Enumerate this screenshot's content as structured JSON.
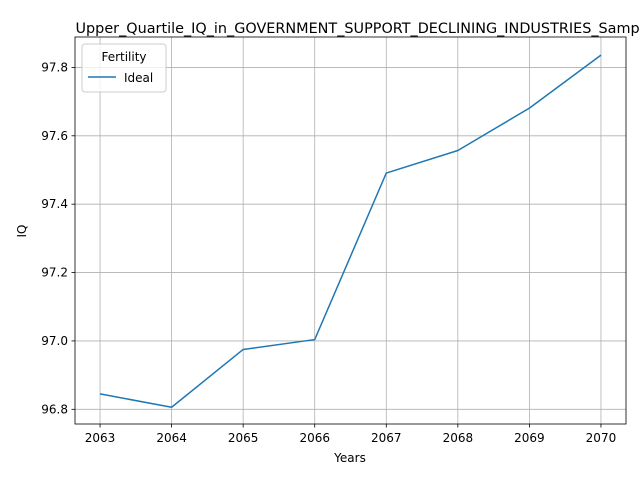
{
  "chart_data": {
    "type": "line",
    "title": "Upper_Quartile_IQ_in_GOVERNMENT_SUPPORT_DECLINING_INDUSTRIES_Sample",
    "xlabel": "Years",
    "ylabel": "IQ",
    "x": [
      2063,
      2064,
      2065,
      2066,
      2067,
      2068,
      2069,
      2070
    ],
    "xlim": [
      2062.65,
      2070.35
    ],
    "ylim": [
      96.757,
      97.889
    ],
    "yticks": [
      "96.8",
      "97.0",
      "97.2",
      "97.4",
      "97.6",
      "97.8"
    ],
    "grid": true,
    "legend": {
      "title": "Fertility",
      "placement": "upper-left"
    },
    "series": [
      {
        "name": "Ideal",
        "color": "#1f77b4",
        "values": [
          96.845,
          96.806,
          96.975,
          97.004,
          97.491,
          97.557,
          97.681,
          97.836
        ]
      }
    ]
  }
}
